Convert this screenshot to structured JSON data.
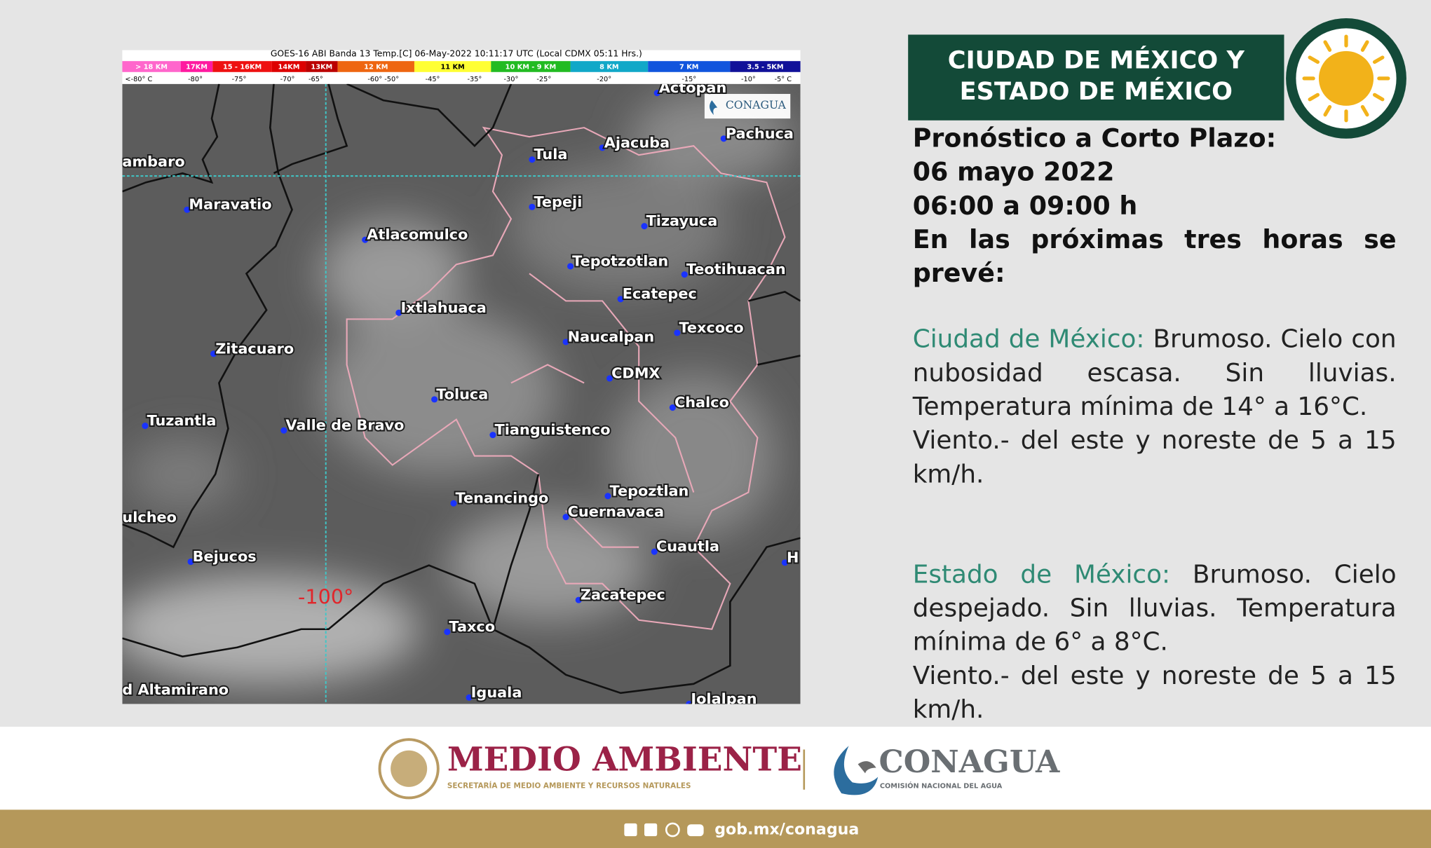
{
  "map": {
    "title": "GOES-16 ABI Banda 13 Temp.[C] 06-May-2022 10:11:17 UTC (Local CDMX  05:11 Hrs.)",
    "altitude_labels": [
      "> 18 KM",
      "17KM",
      "15 - 16KM",
      "14KM",
      "13KM",
      "12 KM",
      "11 KM",
      "10 KM - 9 KM",
      "8 KM",
      "7 KM",
      "3.5 - 5KM"
    ],
    "temperature_labels": [
      "<-80° C",
      "-80°",
      "-75°",
      "-70°",
      "-65°",
      "-60° -50°",
      "-45°",
      "-35°",
      "-30°",
      "-25°",
      "-20°",
      "-15°",
      "-10°",
      "-5° C"
    ],
    "watermark": "CONAGUA",
    "longitude_label": "-100°",
    "places": [
      "Actopan",
      "Pachuca",
      "ambaro",
      "Tula",
      "Ajacuba",
      "Maravatio",
      "Tepeji",
      "Atlacomulco",
      "Tizayuca",
      "Tepotzotlan",
      "Teotihuacan",
      "Ecatepec",
      "Ixtlahuaca",
      "Naucalpan",
      "Texcoco",
      "Zitacuaro",
      "CDMX",
      "Toluca",
      "Chalco",
      "Tuzantla",
      "Valle de Bravo",
      "Tianguistenco",
      "Tepoztlan",
      "Tenancingo",
      "Cuernavaca",
      "ulcheo",
      "Cuautla",
      "Bejucos",
      "H",
      "Zacatepec",
      "Taxco",
      "d Altamirano",
      "Iguala",
      "Jolalpan"
    ]
  },
  "header": {
    "title_lines": [
      "CIUDAD DE MÉXICO Y",
      "ESTADO DE MÉXICO"
    ]
  },
  "forecast": {
    "heading": "Pronóstico a Corto Plazo:",
    "date": "06 mayo 2022",
    "time": "06:00 a 09:00 h",
    "intro": "En las próximas tres horas se prevé:",
    "regions": [
      {
        "name": "Ciudad de México:",
        "conditions": "Brumoso. Cielo con nubosidad escasa. Sin lluvias. Temperatura mínima de 14° a 16°C.",
        "wind": "Viento.- del este y noreste de 5 a 15 km/h."
      },
      {
        "name": "Estado de México:",
        "conditions": "Brumoso. Cielo despejado. Sin lluvias. Temperatura mínima de 6° a 8°C.",
        "wind": "Viento.- del este y noreste de 5 a 15 km/h."
      }
    ]
  },
  "footer": {
    "ministry": "MEDIO AMBIENTE",
    "ministry_subtitle": "SECRETARÍA DE MEDIO AMBIENTE Y RECURSOS NATURALES",
    "agency": "CONAGUA",
    "agency_subtitle": "COMISIÓN NACIONAL DEL AGUA",
    "website": "gob.mx/conagua"
  }
}
